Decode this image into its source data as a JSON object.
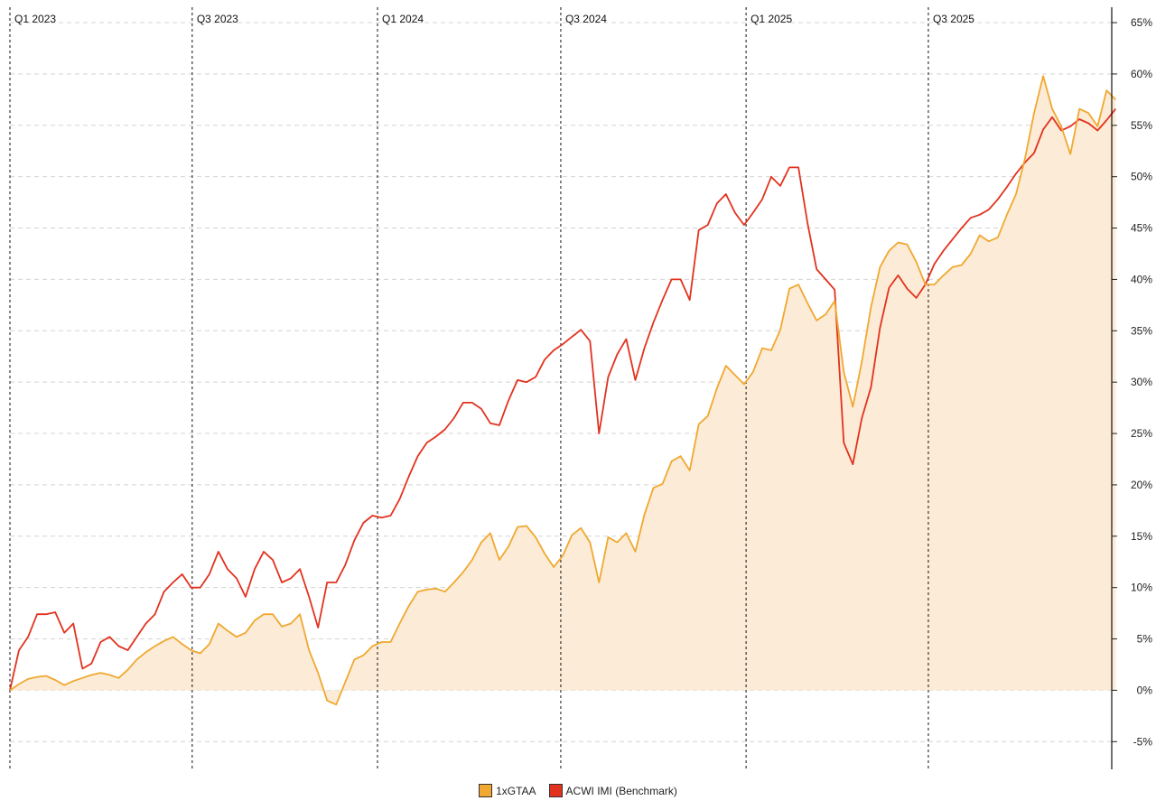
{
  "chart_data": {
    "type": "line",
    "title": "",
    "xlabel": "",
    "ylabel": "",
    "x_start": "2023-01-01",
    "step_days": 9,
    "x_ticks": [
      {
        "label": "Q1 2023",
        "day": 0
      },
      {
        "label": "Q3 2023",
        "day": 181
      },
      {
        "label": "Q1 2024",
        "day": 365
      },
      {
        "label": "Q3 2024",
        "day": 547
      },
      {
        "label": "Q1 2025",
        "day": 731
      },
      {
        "label": "Q3 2025",
        "day": 912
      }
    ],
    "ylim": [
      -7.7,
      66.5
    ],
    "y_ticks": [
      -5,
      0,
      5,
      10,
      15,
      20,
      25,
      30,
      35,
      40,
      45,
      50,
      55,
      60,
      65
    ],
    "y_tick_labels": [
      "-5%",
      "0%",
      "5%",
      "10%",
      "15%",
      "20%",
      "25%",
      "30%",
      "35%",
      "40%",
      "45%",
      "50%",
      "55%",
      "60%",
      "65%"
    ],
    "grid": true,
    "legend_position": "bottom-center",
    "series": [
      {
        "name": "1xGTAA",
        "color": "#f0a830",
        "fill": "#fcebd6",
        "values": [
          0,
          0.6,
          1.1,
          1.3,
          1.4,
          1.0,
          0.5,
          0.9,
          1.2,
          1.5,
          1.7,
          1.5,
          1.2,
          2.0,
          3.0,
          3.7,
          4.3,
          4.8,
          5.2,
          4.5,
          3.9,
          3.6,
          4.5,
          6.5,
          5.8,
          5.2,
          5.6,
          6.8,
          7.4,
          7.4,
          6.2,
          6.5,
          7.4,
          3.9,
          1.7,
          -1.0,
          -1.4,
          0.8,
          3.0,
          3.4,
          4.3,
          4.7,
          4.7,
          6.5,
          8.2,
          9.6,
          9.8,
          9.9,
          9.6,
          10.5,
          11.5,
          12.7,
          14.4,
          15.3,
          12.7,
          14.0,
          15.9,
          16.0,
          14.9,
          13.3,
          12.0,
          13.1,
          15.1,
          15.8,
          14.4,
          10.5,
          14.9,
          14.4,
          15.3,
          13.5,
          17.1,
          19.7,
          20.1,
          22.3,
          22.8,
          21.4,
          25.9,
          26.7,
          29.4,
          31.6,
          30.7,
          29.8,
          31.0,
          33.3,
          33.1,
          35.1,
          39.1,
          39.5,
          37.7,
          36.0,
          36.6,
          37.9,
          31.0,
          27.6,
          32.0,
          37.3,
          41.2,
          42.8,
          43.6,
          43.4,
          41.7,
          39.5,
          39.5,
          40.4,
          41.2,
          41.4,
          42.5,
          44.3,
          43.7,
          44.1,
          46.3,
          48.3,
          51.8,
          56.2,
          59.8,
          56.6,
          54.9,
          52.2,
          56.6,
          56.2,
          54.9,
          58.4,
          57.5
        ]
      },
      {
        "name": "ACWI IMI (Benchmark)",
        "color": "#e2321e",
        "values": [
          0,
          3.9,
          5.2,
          7.4,
          7.4,
          7.6,
          5.6,
          6.5,
          2.1,
          2.6,
          4.7,
          5.2,
          4.3,
          3.9,
          5.2,
          6.5,
          7.4,
          9.6,
          10.5,
          11.3,
          10.0,
          10.0,
          11.3,
          13.5,
          11.8,
          10.9,
          9.1,
          11.8,
          13.5,
          12.7,
          10.5,
          10.9,
          11.8,
          9.1,
          6.1,
          10.5,
          10.5,
          12.2,
          14.6,
          16.3,
          17.0,
          16.8,
          17.0,
          18.6,
          20.8,
          22.8,
          24.1,
          24.7,
          25.4,
          26.5,
          28.0,
          28.0,
          27.4,
          26.0,
          25.8,
          28.2,
          30.2,
          30.0,
          30.5,
          32.2,
          33.1,
          33.7,
          34.4,
          35.1,
          34.0,
          25.0,
          30.5,
          32.7,
          34.2,
          30.2,
          33.3,
          35.8,
          38.0,
          40.0,
          40.0,
          38.0,
          44.8,
          45.3,
          47.4,
          48.3,
          46.5,
          45.3,
          46.5,
          47.8,
          50.0,
          49.1,
          50.9,
          50.9,
          45.5,
          41.0,
          40.0,
          39.0,
          24.1,
          22.0,
          26.5,
          29.5,
          35.3,
          39.2,
          40.4,
          39.1,
          38.2,
          39.5,
          41.5,
          42.8,
          43.9,
          45.0,
          46.0,
          46.3,
          46.8,
          47.8,
          49.0,
          50.3,
          51.4,
          52.3,
          54.6,
          55.8,
          54.5,
          54.9,
          55.6,
          55.2,
          54.5,
          55.5,
          56.6
        ]
      }
    ]
  }
}
